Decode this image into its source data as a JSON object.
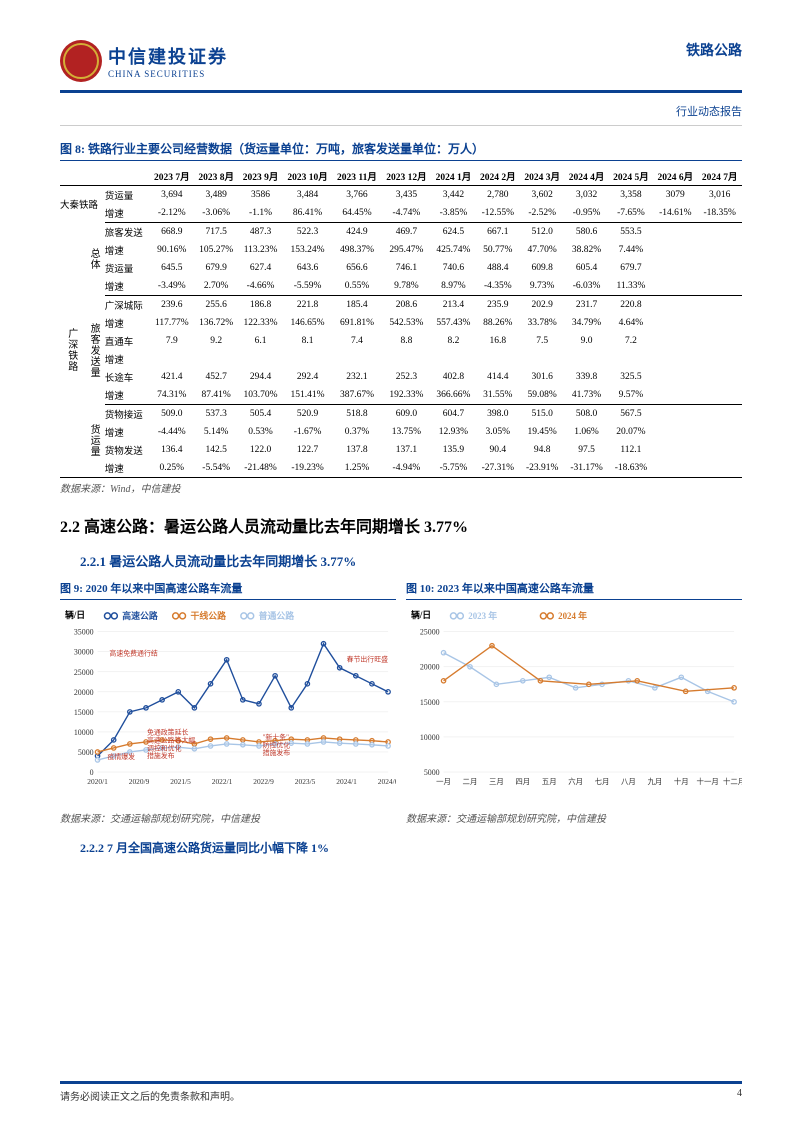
{
  "header": {
    "brand_cn": "中信建投证券",
    "brand_en": "CHINA SECURITIES",
    "category": "铁路公路",
    "subtitle": "行业动态报告",
    "brand_color": "#0b4191",
    "badge_color": "#b22222"
  },
  "table": {
    "title": "图 8: 铁路行业主要公司经营数据（货运量单位：万吨，旅客发送量单位：万人）",
    "period_labels": [
      "2023 7月",
      "2023 8月",
      "2023 9月",
      "2023 10月",
      "2023 11月",
      "2023 12月",
      "2024 1月",
      "2024 2月",
      "2024 3月",
      "2024 4月",
      "2024 5月",
      "2024 6月",
      "2024 7月"
    ],
    "daqin_label": "大秦铁路",
    "gs_label": "广深铁路",
    "cat_total": "总体",
    "cat_pass": "旅客发送量",
    "cat_freight": "货运量",
    "rows": {
      "dq_vol": {
        "lab": "货运量",
        "v": [
          "3,694",
          "3,489",
          "3586",
          "3,484",
          "3,766",
          "3,435",
          "3,442",
          "2,780",
          "3,602",
          "3,032",
          "3,358",
          "3079",
          "3,016"
        ]
      },
      "dq_gr": {
        "lab": "增速",
        "v": [
          "-2.12%",
          "-3.06%",
          "-1.1%",
          "86.41%",
          "64.45%",
          "-4.74%",
          "-3.85%",
          "-12.55%",
          "-2.52%",
          "-0.95%",
          "-7.65%",
          "-14.61%",
          "-18.35%"
        ]
      },
      "tot_pass": {
        "lab": "旅客发送",
        "v": [
          "668.9",
          "717.5",
          "487.3",
          "522.3",
          "424.9",
          "469.7",
          "624.5",
          "667.1",
          "512.0",
          "580.6",
          "553.5",
          "",
          ""
        ]
      },
      "tot_pass_gr": {
        "lab": "增速",
        "v": [
          "90.16%",
          "105.27%",
          "113.23%",
          "153.24%",
          "498.37%",
          "295.47%",
          "425.74%",
          "50.77%",
          "47.70%",
          "38.82%",
          "7.44%",
          "",
          ""
        ]
      },
      "tot_fr": {
        "lab": "货运量",
        "v": [
          "645.5",
          "679.9",
          "627.4",
          "643.6",
          "656.6",
          "746.1",
          "740.6",
          "488.4",
          "609.8",
          "605.4",
          "679.7",
          "",
          ""
        ]
      },
      "tot_fr_gr": {
        "lab": "增速",
        "v": [
          "-3.49%",
          "2.70%",
          "-4.66%",
          "-5.59%",
          "0.55%",
          "9.78%",
          "8.97%",
          "-4.35%",
          "9.73%",
          "-6.03%",
          "11.33%",
          "",
          ""
        ]
      },
      "gs_inter": {
        "lab": "广深城际",
        "v": [
          "239.6",
          "255.6",
          "186.8",
          "221.8",
          "185.4",
          "208.6",
          "213.4",
          "235.9",
          "202.9",
          "231.7",
          "220.8",
          "",
          ""
        ]
      },
      "gs_inter_gr": {
        "lab": "增速",
        "v": [
          "117.77%",
          "136.72%",
          "122.33%",
          "146.65%",
          "691.81%",
          "542.53%",
          "557.43%",
          "88.26%",
          "33.78%",
          "34.79%",
          "4.64%",
          "",
          ""
        ]
      },
      "dir": {
        "lab": "直通车",
        "v": [
          "7.9",
          "9.2",
          "6.1",
          "8.1",
          "7.4",
          "8.8",
          "8.2",
          "16.8",
          "7.5",
          "9.0",
          "7.2",
          "",
          ""
        ]
      },
      "dir_gr": {
        "lab": "增速",
        "v": [
          "",
          "",
          "",
          "",
          "",
          "",
          "",
          "",
          "",
          "",
          "",
          "",
          ""
        ]
      },
      "long": {
        "lab": "长途车",
        "v": [
          "421.4",
          "452.7",
          "294.4",
          "292.4",
          "232.1",
          "252.3",
          "402.8",
          "414.4",
          "301.6",
          "339.8",
          "325.5",
          "",
          ""
        ]
      },
      "long_gr": {
        "lab": "增速",
        "v": [
          "74.31%",
          "87.41%",
          "103.70%",
          "151.41%",
          "387.67%",
          "192.33%",
          "366.66%",
          "31.55%",
          "59.08%",
          "41.73%",
          "9.57%",
          "",
          ""
        ]
      },
      "fr_recv": {
        "lab": "货物接运",
        "v": [
          "509.0",
          "537.3",
          "505.4",
          "520.9",
          "518.8",
          "609.0",
          "604.7",
          "398.0",
          "515.0",
          "508.0",
          "567.5",
          "",
          ""
        ]
      },
      "fr_recv_gr": {
        "lab": "增速",
        "v": [
          "-4.44%",
          "5.14%",
          "0.53%",
          "-1.67%",
          "0.37%",
          "13.75%",
          "12.93%",
          "3.05%",
          "19.45%",
          "1.06%",
          "20.07%",
          "",
          ""
        ]
      },
      "fr_send": {
        "lab": "货物发送",
        "v": [
          "136.4",
          "142.5",
          "122.0",
          "122.7",
          "137.8",
          "137.1",
          "135.9",
          "90.4",
          "94.8",
          "97.5",
          "112.1",
          "",
          ""
        ]
      },
      "fr_send_gr": {
        "lab": "增速",
        "v": [
          "0.25%",
          "-5.54%",
          "-21.48%",
          "-19.23%",
          "1.25%",
          "-4.94%",
          "-5.75%",
          "-27.31%",
          "-23.91%",
          "-31.17%",
          "-18.63%",
          "",
          ""
        ]
      }
    },
    "source": "数据来源：Wind，中信建投"
  },
  "section2": {
    "heading": "2.2 高速公路：暑运公路人员流动量比去年同期增长 3.77%",
    "sub1": "2.2.1 暑运公路人员流动量比去年同期增长 3.77%",
    "sub2": "2.2.2 7 月全国高速公路货运量同比小幅下降 1%"
  },
  "chart9": {
    "title": "图 9: 2020 年以来中国高速公路车流量",
    "type": "line",
    "ylabel": "辆/日",
    "legend": [
      "高速公路",
      "干线公路",
      "普通公路"
    ],
    "legend_colors": [
      "#1f4e9c",
      "#d67b2e",
      "#a8c5e6"
    ],
    "x_ticks": [
      "2020/1",
      "2020/9",
      "2021/5",
      "2022/1",
      "2022/9",
      "2023/5",
      "2024/1",
      "2024/6"
    ],
    "y_ticks": [
      0,
      5000,
      10000,
      15000,
      20000,
      25000,
      30000,
      35000
    ],
    "ylim": [
      0,
      35000
    ],
    "bg": "#ffffff",
    "grid_color": "#e6e6e6",
    "annotations": [
      {
        "text": "高速免费通行结",
        "color": "#c0392b"
      },
      {
        "text": "疫情爆发",
        "color": "#c0392b"
      },
      {
        "text": "免通政策延长\n高速公路等大幅\n调控和优化\n措施发布",
        "color": "#c0392b"
      },
      {
        "text": "\"新十条\"\n防控优化\n措施发布",
        "color": "#c0392b"
      },
      {
        "text": "春节出行旺盛",
        "color": "#c0392b"
      }
    ],
    "series": {
      "highway": [
        4000,
        8000,
        15000,
        16000,
        18000,
        20000,
        16000,
        22000,
        28000,
        18000,
        17000,
        24000,
        16000,
        22000,
        32000,
        26000,
        24000,
        22000,
        20000
      ],
      "trunk": [
        5000,
        6000,
        7000,
        7500,
        8000,
        7800,
        7000,
        8200,
        8500,
        8000,
        7500,
        7800,
        8200,
        8000,
        8500,
        8200,
        8000,
        7800,
        7500
      ],
      "normal": [
        3000,
        4000,
        5000,
        5500,
        6000,
        6200,
        5800,
        6500,
        7000,
        6800,
        6500,
        7000,
        7200,
        7000,
        7500,
        7200,
        7000,
        6800,
        6500
      ]
    },
    "source": "数据来源：交通运输部规划研究院，中信建投"
  },
  "chart10": {
    "title": "图 10: 2023 年以来中国高速公路车流量",
    "type": "line",
    "ylabel": "辆/日",
    "legend": [
      "2023 年",
      "2024 年"
    ],
    "legend_colors": [
      "#a8c5e6",
      "#d67b2e"
    ],
    "x_ticks": [
      "一月",
      "二月",
      "三月",
      "四月",
      "五月",
      "六月",
      "七月",
      "八月",
      "九月",
      "十月",
      "十一月",
      "十二月"
    ],
    "y_ticks": [
      5000,
      10000,
      15000,
      20000,
      25000
    ],
    "ylim": [
      5000,
      25000
    ],
    "bg": "#ffffff",
    "series": {
      "y2023": [
        22000,
        20000,
        17500,
        18000,
        18500,
        17000,
        17500,
        18000,
        17000,
        18500,
        16500,
        15000
      ],
      "y2024": [
        18000,
        23000,
        18000,
        17500,
        18000,
        16500,
        17000
      ]
    },
    "source": "数据来源：交通运输部规划研究院，中信建投"
  },
  "footer": {
    "disclaimer": "请务必阅读正文之后的免责条款和声明。",
    "page": "4"
  }
}
